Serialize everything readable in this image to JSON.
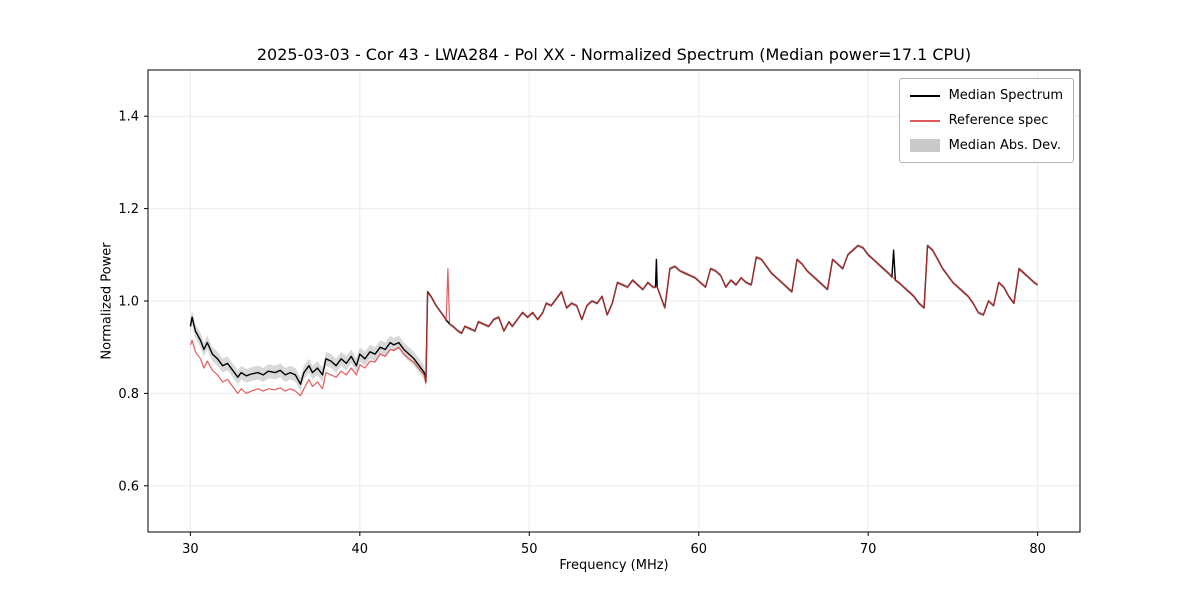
{
  "chart_data": {
    "type": "line",
    "title": "2025-03-03 - Cor 43 - LWA284 - Pol XX - Normalized Spectrum (Median power=17.1 CPU)",
    "xlabel": "Frequency (MHz)",
    "ylabel": "Normalized Power",
    "xlim": [
      27.5,
      82.5
    ],
    "ylim": [
      0.5,
      1.5
    ],
    "xticks": [
      30,
      40,
      50,
      60,
      70,
      80
    ],
    "xticklabels": [
      "30",
      "40",
      "50",
      "60",
      "70",
      "80"
    ],
    "yticks": [
      0.6,
      0.8,
      1.0,
      1.2,
      1.4
    ],
    "yticklabels": [
      "0.6",
      "0.8",
      "1.0",
      "1.2",
      "1.4"
    ],
    "grid": true,
    "grid_color": "#ebebeb",
    "legend_position": "upper right",
    "legend": [
      {
        "label": "Median Spectrum",
        "type": "line",
        "color": "#000000"
      },
      {
        "label": "Reference spec",
        "type": "line",
        "color": "#e05a5a"
      },
      {
        "label": "Median Abs. Dev.",
        "type": "patch",
        "color": "#c9c9c9"
      }
    ],
    "x": [
      30,
      30.1,
      30.3,
      30.6,
      30.8,
      31,
      31.3,
      31.6,
      31.9,
      32.2,
      32.5,
      32.8,
      33,
      33.3,
      33.6,
      34,
      34.3,
      34.6,
      35,
      35.3,
      35.6,
      35.9,
      36.2,
      36.5,
      36.7,
      37,
      37.2,
      37.5,
      37.8,
      38,
      38.3,
      38.6,
      38.9,
      39.2,
      39.5,
      39.8,
      40,
      40.3,
      40.6,
      40.9,
      41.2,
      41.5,
      41.8,
      42,
      42.3,
      42.6,
      42.9,
      43.2,
      43.5,
      43.8,
      43.9,
      44,
      44.2,
      44.5,
      44.8,
      45,
      45.1,
      45.2,
      45.3,
      45.5,
      45.8,
      46,
      46.2,
      46.5,
      46.8,
      47,
      47.3,
      47.6,
      47.9,
      48.2,
      48.5,
      48.8,
      49,
      49.3,
      49.6,
      49.9,
      50.2,
      50.5,
      50.8,
      51,
      51.3,
      51.6,
      51.9,
      52.2,
      52.5,
      52.8,
      53.1,
      53.4,
      53.7,
      54,
      54.3,
      54.6,
      54.9,
      55.2,
      55.5,
      55.8,
      56.1,
      56.4,
      56.7,
      57,
      57.3,
      57.45,
      57.5,
      57.55,
      58,
      58.3,
      58.6,
      58.9,
      59.2,
      59.5,
      59.8,
      60.1,
      60.4,
      60.7,
      61,
      61.3,
      61.6,
      61.9,
      62.2,
      62.5,
      62.8,
      63.1,
      63.4,
      63.7,
      64,
      64.3,
      64.6,
      64.9,
      65.2,
      65.5,
      65.8,
      66.1,
      66.4,
      66.7,
      67,
      67.3,
      67.6,
      67.9,
      68.2,
      68.5,
      68.8,
      69.1,
      69.4,
      69.7,
      70,
      70.3,
      70.6,
      70.9,
      71.2,
      71.4,
      71.5,
      71.6,
      71.8,
      72.1,
      72.4,
      72.7,
      73,
      73.3,
      73.5,
      73.8,
      74.1,
      74.4,
      74.7,
      75,
      75.3,
      75.6,
      75.9,
      76.2,
      76.5,
      76.8,
      77.1,
      77.4,
      77.7,
      78,
      78.3,
      78.6,
      78.9,
      79.2,
      79.5,
      79.8,
      80
    ],
    "series": [
      {
        "name": "Median Spectrum",
        "color": "#000000",
        "opacity": 1,
        "width": 1.4,
        "values": [
          0.945,
          0.965,
          0.935,
          0.915,
          0.895,
          0.91,
          0.885,
          0.875,
          0.86,
          0.865,
          0.85,
          0.835,
          0.845,
          0.838,
          0.842,
          0.845,
          0.84,
          0.848,
          0.845,
          0.85,
          0.84,
          0.845,
          0.84,
          0.82,
          0.845,
          0.86,
          0.845,
          0.855,
          0.84,
          0.875,
          0.87,
          0.86,
          0.875,
          0.865,
          0.88,
          0.86,
          0.885,
          0.875,
          0.89,
          0.885,
          0.9,
          0.895,
          0.91,
          0.905,
          0.91,
          0.895,
          0.885,
          0.875,
          0.86,
          0.845,
          0.825,
          1.02,
          1.01,
          0.99,
          0.975,
          0.965,
          0.958,
          0.955,
          0.95,
          0.945,
          0.935,
          0.93,
          0.945,
          0.94,
          0.935,
          0.955,
          0.95,
          0.945,
          0.96,
          0.965,
          0.935,
          0.955,
          0.945,
          0.96,
          0.975,
          0.965,
          0.975,
          0.96,
          0.975,
          0.995,
          0.99,
          1.005,
          1.02,
          0.985,
          0.995,
          0.99,
          0.96,
          0.99,
          1,
          0.995,
          1.01,
          0.97,
          0.995,
          1.04,
          1.035,
          1.03,
          1.045,
          1.035,
          1.025,
          1.04,
          1.03,
          1.03,
          1.09,
          1.03,
          0.985,
          1.07,
          1.075,
          1.065,
          1.06,
          1.055,
          1.05,
          1.04,
          1.03,
          1.07,
          1.065,
          1.055,
          1.03,
          1.045,
          1.035,
          1.05,
          1.04,
          1.035,
          1.095,
          1.09,
          1.075,
          1.06,
          1.05,
          1.04,
          1.03,
          1.02,
          1.09,
          1.08,
          1.065,
          1.055,
          1.045,
          1.035,
          1.025,
          1.09,
          1.08,
          1.07,
          1.1,
          1.11,
          1.12,
          1.115,
          1.1,
          1.09,
          1.08,
          1.07,
          1.06,
          1.052,
          1.11,
          1.045,
          1.04,
          1.03,
          1.02,
          1.01,
          0.995,
          0.985,
          1.12,
          1.11,
          1.09,
          1.07,
          1.055,
          1.04,
          1.03,
          1.02,
          1.01,
          0.995,
          0.975,
          0.97,
          1,
          0.99,
          1.04,
          1.03,
          1.01,
          0.995,
          1.07,
          1.06,
          1.05,
          1.04,
          1.035
        ]
      },
      {
        "name": "Reference spec",
        "color": "#dd3333",
        "opacity": 0.8,
        "width": 1.2,
        "values": [
          0.905,
          0.915,
          0.89,
          0.875,
          0.855,
          0.87,
          0.85,
          0.84,
          0.825,
          0.83,
          0.815,
          0.8,
          0.81,
          0.8,
          0.805,
          0.81,
          0.805,
          0.81,
          0.808,
          0.812,
          0.805,
          0.81,
          0.805,
          0.795,
          0.81,
          0.83,
          0.815,
          0.825,
          0.81,
          0.845,
          0.84,
          0.835,
          0.848,
          0.84,
          0.855,
          0.84,
          0.862,
          0.855,
          0.87,
          0.868,
          0.885,
          0.88,
          0.895,
          0.893,
          0.9,
          0.885,
          0.875,
          0.867,
          0.853,
          0.84,
          0.822,
          1.018,
          1.01,
          0.99,
          0.975,
          0.965,
          0.958,
          1.07,
          0.95,
          0.945,
          0.935,
          0.93,
          0.945,
          0.94,
          0.935,
          0.955,
          0.95,
          0.945,
          0.96,
          0.965,
          0.935,
          0.955,
          0.945,
          0.96,
          0.975,
          0.965,
          0.975,
          0.96,
          0.975,
          0.995,
          0.99,
          1.005,
          1.02,
          0.985,
          0.995,
          0.99,
          0.96,
          0.99,
          1,
          0.995,
          1.01,
          0.97,
          0.995,
          1.04,
          1.035,
          1.03,
          1.045,
          1.035,
          1.025,
          1.04,
          1.03,
          1.03,
          1.03,
          1.03,
          0.985,
          1.07,
          1.075,
          1.065,
          1.06,
          1.055,
          1.05,
          1.04,
          1.03,
          1.07,
          1.065,
          1.055,
          1.03,
          1.045,
          1.035,
          1.05,
          1.04,
          1.035,
          1.095,
          1.09,
          1.075,
          1.06,
          1.05,
          1.04,
          1.03,
          1.02,
          1.09,
          1.08,
          1.065,
          1.055,
          1.045,
          1.035,
          1.025,
          1.09,
          1.08,
          1.07,
          1.1,
          1.11,
          1.12,
          1.115,
          1.1,
          1.09,
          1.08,
          1.07,
          1.06,
          1.052,
          1.05,
          1.045,
          1.04,
          1.03,
          1.02,
          1.01,
          0.995,
          0.985,
          1.12,
          1.11,
          1.09,
          1.07,
          1.055,
          1.04,
          1.03,
          1.02,
          1.01,
          0.995,
          0.975,
          0.97,
          1,
          0.99,
          1.04,
          1.03,
          1.01,
          0.995,
          1.07,
          1.06,
          1.05,
          1.04,
          1.035
        ]
      }
    ],
    "mad_band": {
      "name": "Median Abs. Dev.",
      "around_series": "Median Spectrum",
      "x_threshold": 43.95,
      "halfwidth_below": 0.015,
      "halfwidth_above": 0.004,
      "color": "#bebebe",
      "opacity": 0.6
    }
  }
}
